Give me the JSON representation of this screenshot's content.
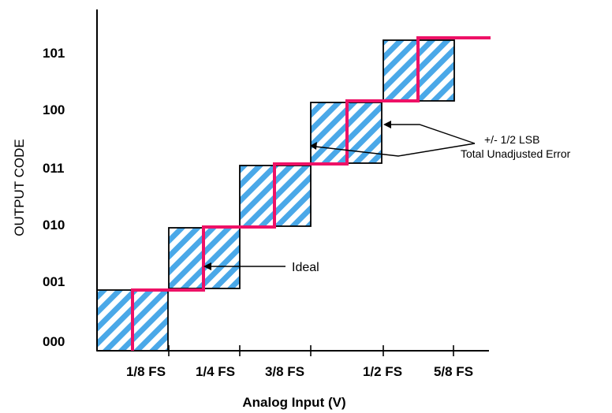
{
  "figure": {
    "y_axis_title": "OUTPUT CODE",
    "x_axis_title": "Analog Input (V)",
    "y_codes": [
      "000",
      "001",
      "010",
      "011",
      "100",
      "101"
    ],
    "x_ticks": [
      "1/8 FS",
      "1/4 FS",
      "3/8 FS",
      "1/2 FS",
      "5/8 FS"
    ],
    "annotations": {
      "ideal": "Ideal",
      "error_line1": "+/- 1/2 LSB",
      "error_line2": "Total Unadjusted Error"
    },
    "colors": {
      "ideal_line": "#ee1166",
      "hatch": "#4aa8e8",
      "box_fill": "#ffffff",
      "box_stroke": "#000000",
      "axis": "#000000"
    },
    "steps": {
      "description_free": true,
      "codes": [
        0,
        1,
        2,
        3,
        4,
        5
      ],
      "transition_at_fs_fraction": [
        0.0625,
        0.1875,
        0.3125,
        0.4375,
        0.5625
      ]
    }
  }
}
